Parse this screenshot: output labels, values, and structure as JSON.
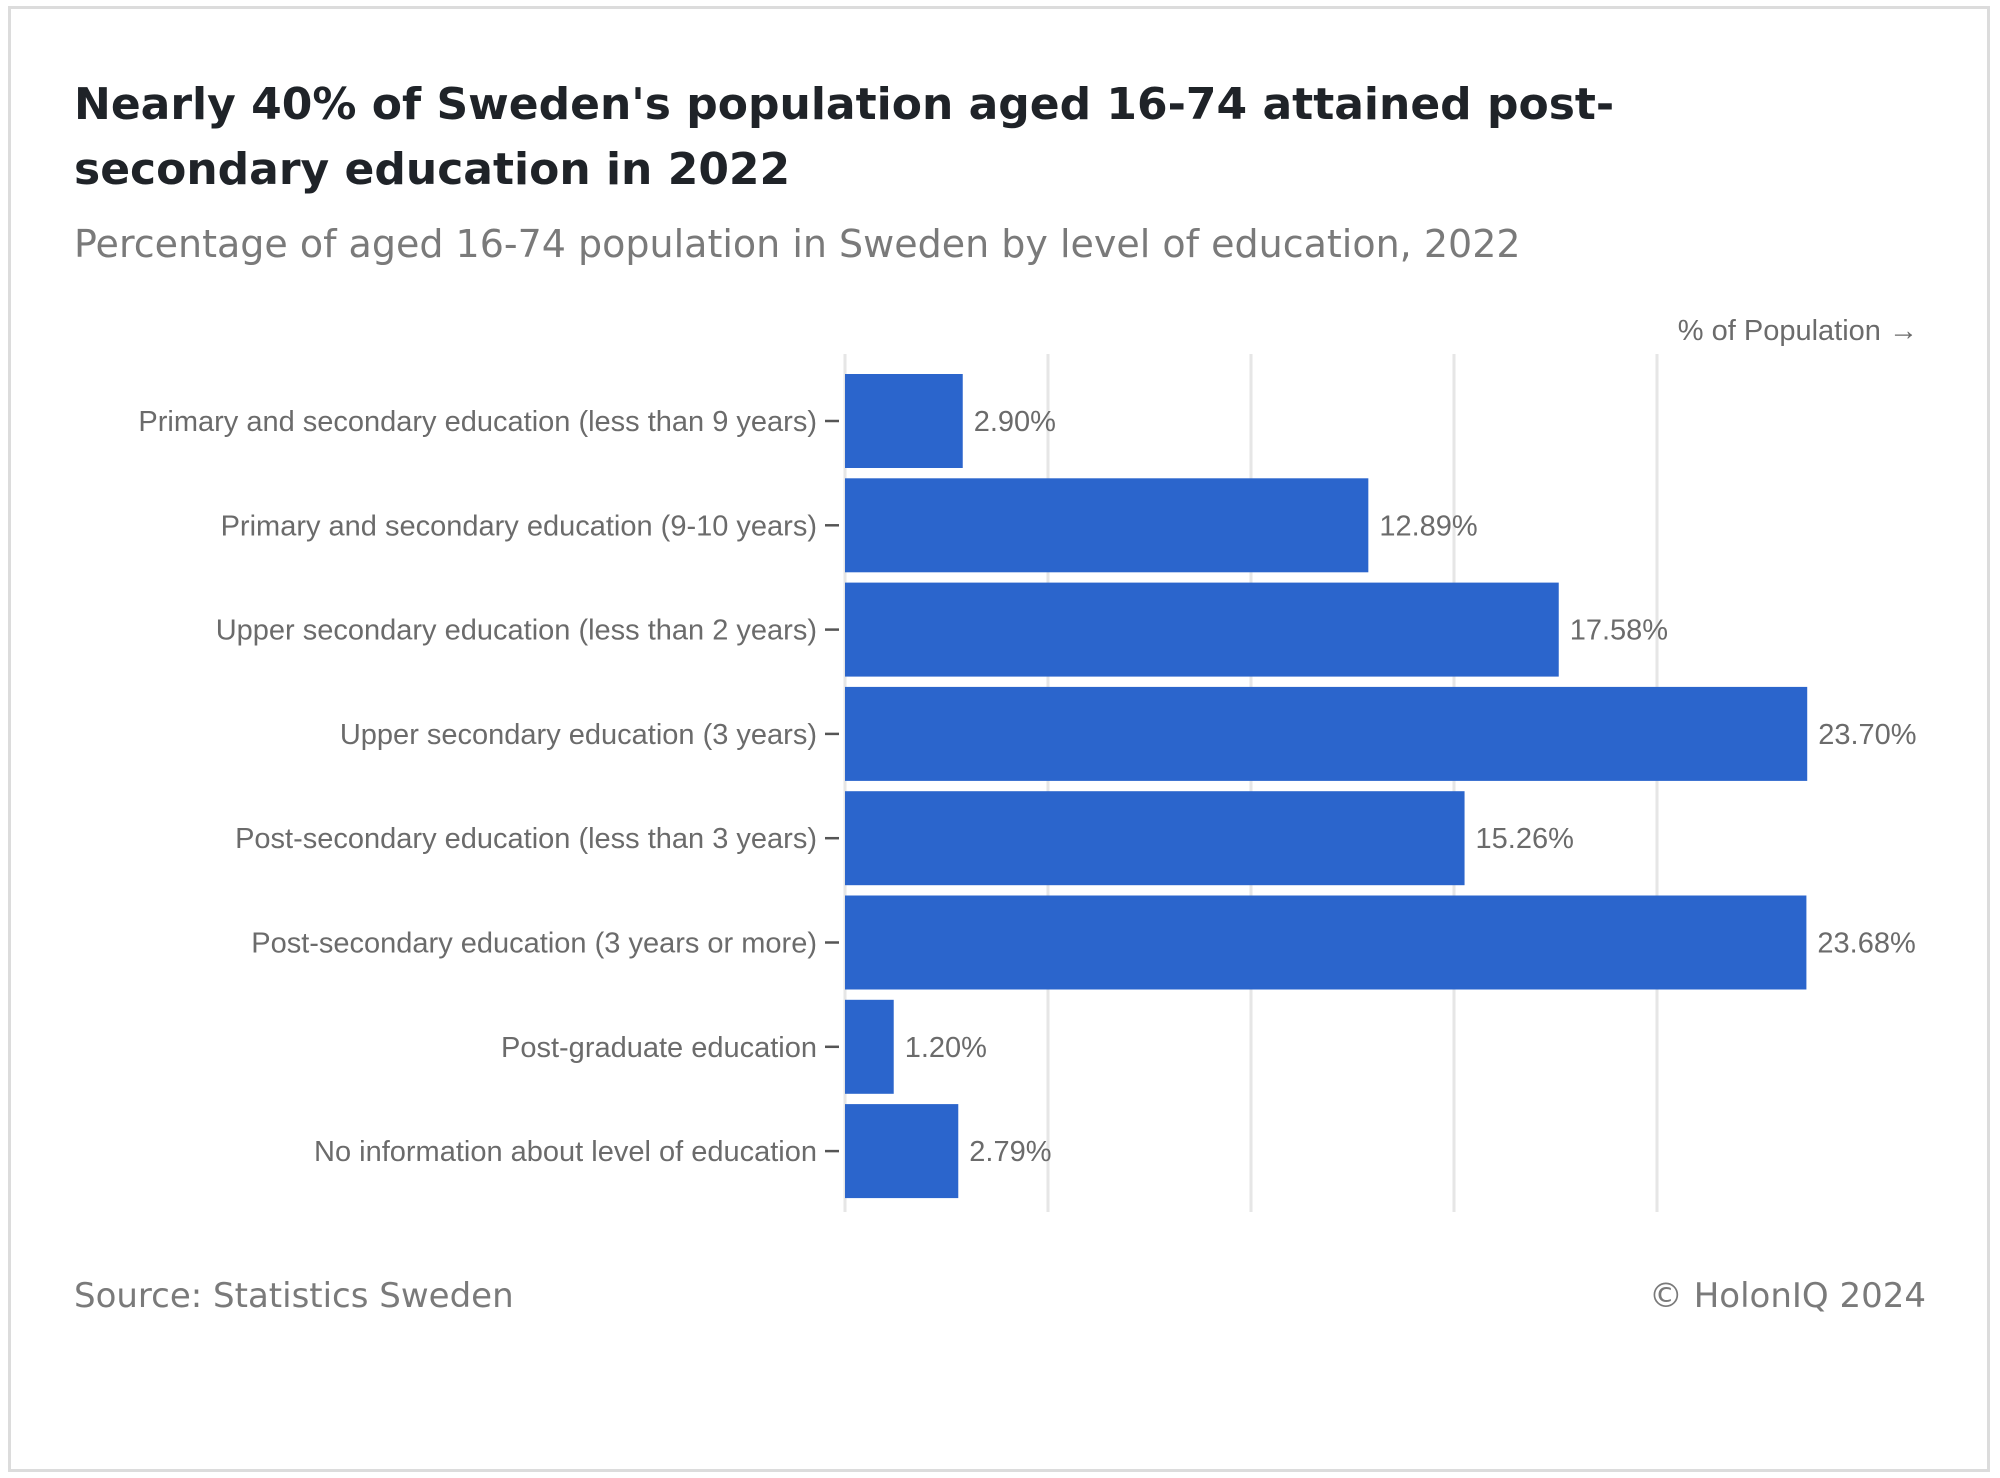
{
  "title": "Nearly 40% of Sweden's population aged 16-74 attained post-secondary education in 2022",
  "subtitle": "Percentage of aged 16-74 population in Sweden by level of education, 2022",
  "footer": {
    "source": "Source: Statistics Sweden",
    "credit": "© HolonIQ 2024"
  },
  "colors": {
    "bar": "#2b65cc",
    "grid": "#e6e6e6",
    "text": "#6b6b6b"
  },
  "chart_data": {
    "type": "bar",
    "orientation": "horizontal",
    "xlabel": "% of Population →",
    "ylabel": "",
    "xlim": [
      0,
      25
    ],
    "grid": true,
    "categories": [
      "Primary and secondary education (less than 9 years)",
      "Primary and secondary education (9-10 years)",
      "Upper secondary education (less than 2 years)",
      "Upper secondary education (3 years)",
      "Post-secondary education (less than 3 years)",
      "Post-secondary education (3 years or more)",
      "Post-graduate education",
      "No information about level of education"
    ],
    "values": [
      2.9,
      12.89,
      17.58,
      23.7,
      15.26,
      23.68,
      1.2,
      2.79
    ],
    "value_labels": [
      "2.90%",
      "12.89%",
      "17.58%",
      "23.70%",
      "15.26%",
      "23.68%",
      "1.20%",
      "2.79%"
    ]
  }
}
